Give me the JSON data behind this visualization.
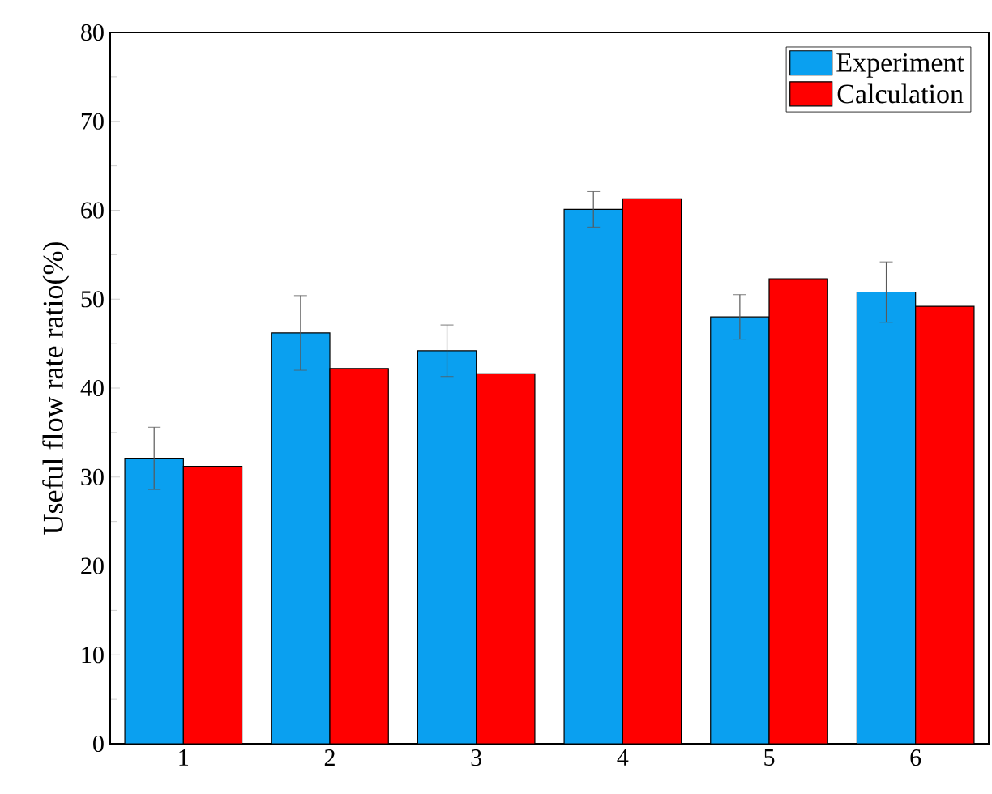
{
  "chart_data": {
    "type": "bar",
    "ylabel": "Useful flow rate ratio(%)",
    "categories": [
      "1",
      "2",
      "3",
      "4",
      "5",
      "6"
    ],
    "series": [
      {
        "name": "Experiment",
        "color": "#0aa0f0",
        "values": [
          32.1,
          46.2,
          44.2,
          60.1,
          48.0,
          50.8
        ],
        "errors": [
          3.5,
          4.2,
          2.9,
          2.0,
          2.5,
          3.4
        ]
      },
      {
        "name": "Calculation",
        "color": "#ff0000",
        "values": [
          31.2,
          42.2,
          41.6,
          61.3,
          52.3,
          49.2
        ]
      }
    ],
    "ylim": [
      0,
      80
    ],
    "yticks": [
      0,
      10,
      20,
      30,
      40,
      50,
      60,
      70,
      80
    ],
    "legend": "top right",
    "grid": false
  }
}
